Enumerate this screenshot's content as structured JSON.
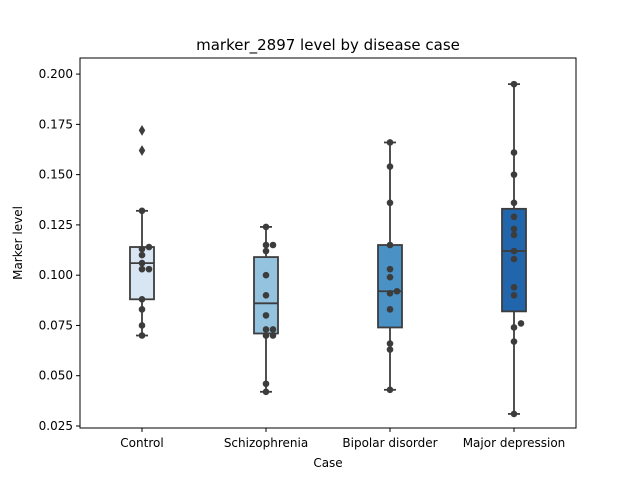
{
  "chart_data": {
    "type": "box",
    "title": "marker_2897 level by disease case",
    "xlabel": "Case",
    "ylabel": "Marker level",
    "ylim": [
      0.024,
      0.208
    ],
    "yticks": [
      "0.025",
      "0.050",
      "0.075",
      "0.100",
      "0.125",
      "0.150",
      "0.175",
      "0.200"
    ],
    "categories": [
      "Control",
      "Schizophrenia",
      "Bipolar disorder",
      "Major depression"
    ],
    "colors": [
      "#d8e5f3",
      "#93c3df",
      "#4a92c6",
      "#2166ac"
    ],
    "edge_color": "#3d3d3d",
    "point_color": "#3c3c3c",
    "boxes": [
      {
        "q1": 0.088,
        "median": 0.106,
        "q3": 0.114,
        "whisker_low": 0.07,
        "whisker_high": 0.132,
        "outliers": [
          0.162,
          0.172
        ]
      },
      {
        "q1": 0.071,
        "median": 0.086,
        "q3": 0.109,
        "whisker_low": 0.042,
        "whisker_high": 0.124,
        "outliers": []
      },
      {
        "q1": 0.074,
        "median": 0.092,
        "q3": 0.115,
        "whisker_low": 0.043,
        "whisker_high": 0.166,
        "outliers": []
      },
      {
        "q1": 0.082,
        "median": 0.112,
        "q3": 0.133,
        "whisker_low": 0.031,
        "whisker_high": 0.195,
        "outliers": []
      }
    ],
    "points": [
      [
        0.07,
        0.075,
        0.083,
        0.088,
        0.103,
        0.103,
        0.106,
        0.11,
        0.113,
        0.114,
        0.132
      ],
      [
        0.042,
        0.046,
        0.07,
        0.07,
        0.073,
        0.073,
        0.08,
        0.09,
        0.1,
        0.112,
        0.115,
        0.115,
        0.124
      ],
      [
        0.043,
        0.063,
        0.066,
        0.083,
        0.091,
        0.092,
        0.099,
        0.103,
        0.115,
        0.136,
        0.154,
        0.166
      ],
      [
        0.031,
        0.067,
        0.074,
        0.076,
        0.09,
        0.094,
        0.108,
        0.112,
        0.12,
        0.123,
        0.129,
        0.136,
        0.15,
        0.161,
        0.195
      ]
    ]
  }
}
